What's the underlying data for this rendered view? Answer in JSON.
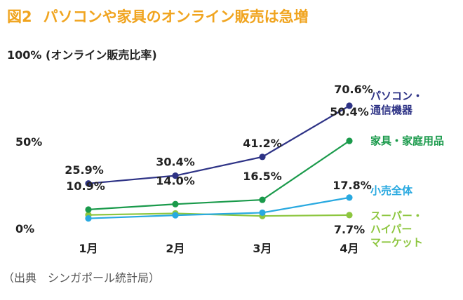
{
  "figure": {
    "number": "図2",
    "title": "パソコンや家具のオンライン販売は急増",
    "source": "（出典　シンガポール統計局）"
  },
  "chart_data": {
    "type": "line",
    "title": "パソコンや家具のオンライン販売は急増",
    "ylabel": "100% (オンライン販売比率)",
    "xlabel": "",
    "categories": [
      "1月",
      "2月",
      "3月",
      "4月"
    ],
    "ylim": [
      0,
      100
    ],
    "yticks": [
      {
        "value": 0,
        "label": "0%"
      },
      {
        "value": 50,
        "label": "50%"
      }
    ],
    "grid": false,
    "legend_placement": "right, labels beside line ends",
    "series": [
      {
        "name": "パソコン・通信機器",
        "name_lines": [
          "パソコン・",
          "通信機器"
        ],
        "color": "#2e3386",
        "values": [
          25.9,
          30.4,
          41.2,
          70.6
        ],
        "labels": [
          "25.9%",
          "30.4%",
          "41.2%",
          "70.6%"
        ]
      },
      {
        "name": "家具・家庭用品",
        "name_lines": [
          "家具・家庭用品"
        ],
        "color": "#1a9a4b",
        "values": [
          10.9,
          14.0,
          16.5,
          50.4
        ],
        "labels": [
          "10.9%",
          "14.0%",
          "16.5%",
          "50.4%"
        ]
      },
      {
        "name": "小売全体",
        "name_lines": [
          "小売全体"
        ],
        "color": "#29a9e0",
        "values": [
          5.8,
          7.6,
          9.1,
          17.8
        ],
        "labels": [
          "",
          "",
          "",
          "17.8%"
        ]
      },
      {
        "name": "スーパー・ハイパーマーケット",
        "name_lines": [
          "スーパー・",
          "ハイパー",
          "マーケット"
        ],
        "color": "#8dc63f",
        "values": [
          7.8,
          8.7,
          7.2,
          7.7
        ],
        "labels": [
          "",
          "",
          "",
          "7.7%"
        ]
      }
    ]
  }
}
